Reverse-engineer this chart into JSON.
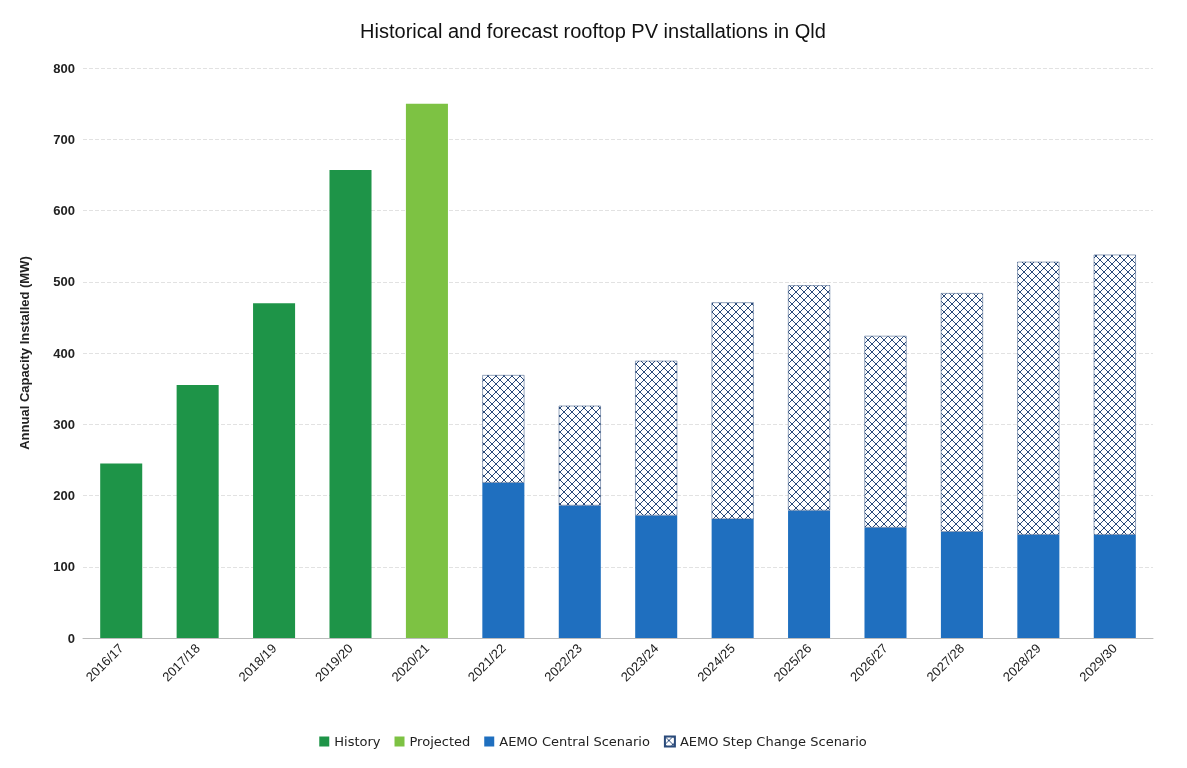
{
  "chart_data": {
    "type": "bar",
    "title": "Historical and forecast rooftop PV installations in Qld",
    "ylabel": "Annual Capacity Installed (MW)",
    "categories": [
      "2016/17",
      "2017/18",
      "2018/19",
      "2019/20",
      "2020/21",
      "2021/22",
      "2022/23",
      "2023/24",
      "2024/25",
      "2025/26",
      "2026/27",
      "2027/28",
      "2028/29",
      "2029/30"
    ],
    "stacked": true,
    "series": [
      {
        "name": "History",
        "color": "#1e9448",
        "values": [
          245,
          355,
          470,
          657,
          null,
          null,
          null,
          null,
          null,
          null,
          null,
          null,
          null,
          null
        ]
      },
      {
        "name": "Projected",
        "color": "#7dc243",
        "values": [
          null,
          null,
          null,
          null,
          750,
          null,
          null,
          null,
          null,
          null,
          null,
          null,
          null,
          null
        ]
      },
      {
        "name": "AEMO Central Scenario",
        "color": "#1f6fbf",
        "values": [
          null,
          null,
          null,
          null,
          null,
          218,
          186,
          172,
          167,
          179,
          155,
          149,
          145,
          145
        ]
      },
      {
        "name": "AEMO Step Change Scenario",
        "color": "#2a4a7a",
        "values": [
          null,
          null,
          null,
          null,
          null,
          151,
          140,
          217,
          304,
          316,
          269,
          335,
          383,
          393
        ]
      }
    ],
    "ylim": [
      0,
      800
    ],
    "yticks": [
      0,
      100,
      200,
      300,
      400,
      500,
      600,
      700,
      800
    ],
    "grid": "y",
    "legend": "bottom"
  }
}
